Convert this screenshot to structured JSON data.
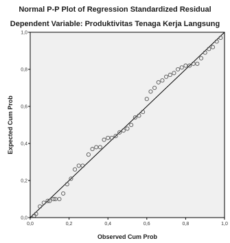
{
  "chart_data": {
    "type": "scatter",
    "title": "Normal P-P Plot of Regression Standardized Residual",
    "subtitle": "Dependent Variable: Produktivitas Tenaga Kerja Langsung",
    "xlabel": "Observed Cum Prob",
    "ylabel": "Expected Cum Prob",
    "xlim": [
      0,
      1
    ],
    "ylim": [
      0,
      1
    ],
    "x_ticks": [
      "0,0",
      "0,2",
      "0,4",
      "0,6",
      "0,8",
      "1,0"
    ],
    "y_ticks": [
      "0,0",
      "0,2",
      "0,4",
      "0,6",
      "0,8",
      "1,0"
    ],
    "grid": false,
    "reference_line": {
      "from": [
        0,
        0
      ],
      "to": [
        1,
        1
      ]
    },
    "points": [
      [
        0.02,
        0.01
      ],
      [
        0.03,
        0.02
      ],
      [
        0.05,
        0.06
      ],
      [
        0.07,
        0.08
      ],
      [
        0.09,
        0.09
      ],
      [
        0.1,
        0.09
      ],
      [
        0.12,
        0.1
      ],
      [
        0.13,
        0.1
      ],
      [
        0.15,
        0.1
      ],
      [
        0.17,
        0.13
      ],
      [
        0.19,
        0.18
      ],
      [
        0.21,
        0.21
      ],
      [
        0.23,
        0.26
      ],
      [
        0.25,
        0.28
      ],
      [
        0.27,
        0.28
      ],
      [
        0.3,
        0.34
      ],
      [
        0.32,
        0.37
      ],
      [
        0.34,
        0.38
      ],
      [
        0.36,
        0.38
      ],
      [
        0.38,
        0.42
      ],
      [
        0.4,
        0.43
      ],
      [
        0.42,
        0.43
      ],
      [
        0.44,
        0.44
      ],
      [
        0.46,
        0.46
      ],
      [
        0.48,
        0.47
      ],
      [
        0.5,
        0.48
      ],
      [
        0.52,
        0.5
      ],
      [
        0.54,
        0.54
      ],
      [
        0.56,
        0.55
      ],
      [
        0.58,
        0.57
      ],
      [
        0.6,
        0.64
      ],
      [
        0.62,
        0.68
      ],
      [
        0.64,
        0.7
      ],
      [
        0.66,
        0.73
      ],
      [
        0.68,
        0.74
      ],
      [
        0.7,
        0.76
      ],
      [
        0.72,
        0.77
      ],
      [
        0.74,
        0.78
      ],
      [
        0.76,
        0.8
      ],
      [
        0.78,
        0.81
      ],
      [
        0.8,
        0.82
      ],
      [
        0.82,
        0.82
      ],
      [
        0.84,
        0.83
      ],
      [
        0.86,
        0.83
      ],
      [
        0.88,
        0.86
      ],
      [
        0.9,
        0.89
      ],
      [
        0.92,
        0.91
      ],
      [
        0.94,
        0.92
      ],
      [
        0.96,
        0.95
      ],
      [
        0.98,
        0.97
      ]
    ],
    "colors": {
      "frame": "#000000",
      "plot_bg": "#f0f0f0",
      "line": "#000000",
      "marker": "#555555"
    }
  }
}
